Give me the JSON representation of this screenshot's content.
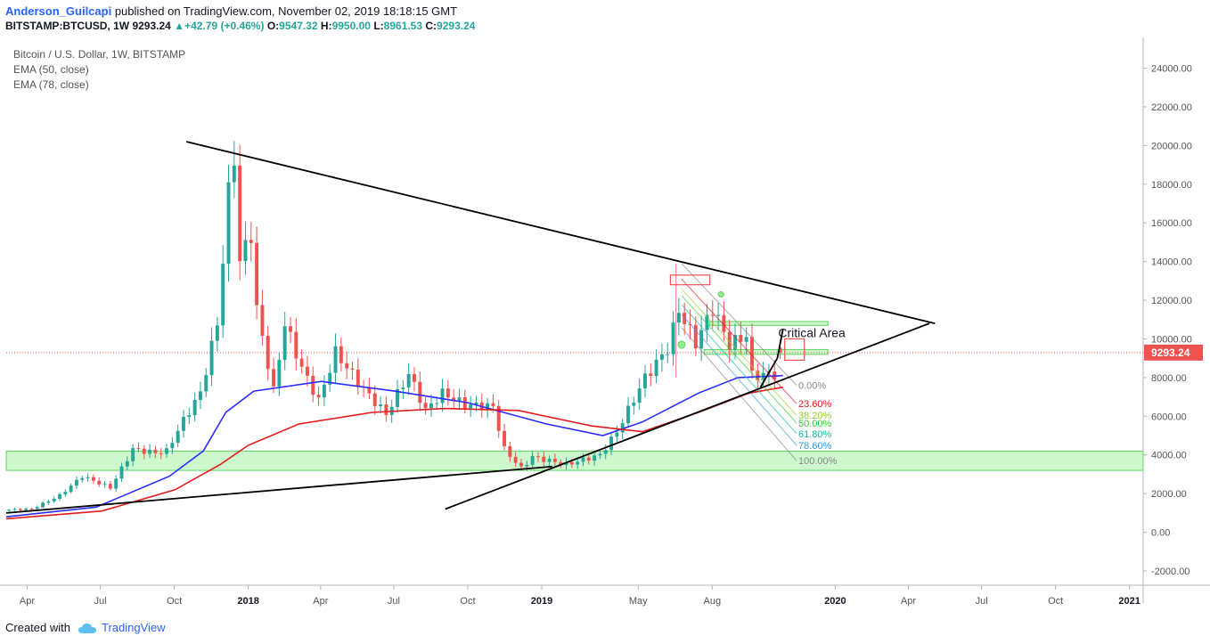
{
  "header": {
    "author": "Anderson_Guilcapi",
    "published": "published on TradingView.com, November 02, 2019 18:18:15 GMT",
    "symbol": "BITSTAMP:BTCUSD, 1W",
    "last": "9293.24",
    "change": "+42.79 (+0.46%)",
    "o_label": "O:",
    "o_value": "9547.32",
    "h_label": "H:",
    "h_value": "9950.00",
    "l_label": "L:",
    "l_value": "8961.53",
    "c_label": "C:",
    "c_value": "9293.24",
    "up_arrow_icon": "triangle-up-icon"
  },
  "legend": {
    "title": "Bitcoin / U.S. Dollar, 1W, BITSTAMP",
    "ema50": "EMA (50, close)",
    "ema78": "EMA (78, close)"
  },
  "footer": {
    "created_with": "Created with",
    "brand": "TradingView",
    "logo_icon": "tradingview-cloud-icon"
  },
  "colors": {
    "up": "#26a69a",
    "down": "#ef5350",
    "ema50": "#2b2bff",
    "ema78": "#e41a1c",
    "trendline": "#000000",
    "zone": "#90ee90",
    "price_label": "#ef5350"
  },
  "chart_data": {
    "type": "candlestick",
    "symbol": "BITSTAMP:BTCUSD",
    "interval": "1W",
    "y_axis_position": "right",
    "ylim": [
      -2600,
      25500
    ],
    "y_ticks": [
      "-2000.00",
      "0.00",
      "2000.00",
      "4000.00",
      "6000.00",
      "8000.00",
      "10000.00",
      "12000.00",
      "14000.00",
      "16000.00",
      "18000.00",
      "20000.00",
      "22000.00",
      "24000.00"
    ],
    "x_range": [
      "2017-03-06",
      "2021-01-18"
    ],
    "x_ticks": [
      {
        "label": "Apr",
        "date": "2017-04-01",
        "bold": false
      },
      {
        "label": "Jul",
        "date": "2017-07-01",
        "bold": false
      },
      {
        "label": "Oct",
        "date": "2017-10-01",
        "bold": false
      },
      {
        "label": "2018",
        "date": "2018-01-01",
        "bold": true
      },
      {
        "label": "Apr",
        "date": "2018-04-01",
        "bold": false
      },
      {
        "label": "Jul",
        "date": "2018-07-01",
        "bold": false
      },
      {
        "label": "Oct",
        "date": "2018-10-01",
        "bold": false
      },
      {
        "label": "2019",
        "date": "2019-01-01",
        "bold": true
      },
      {
        "label": "May",
        "date": "2019-05-01",
        "bold": false
      },
      {
        "label": "Aug",
        "date": "2019-08-01",
        "bold": false
      },
      {
        "label": "2020",
        "date": "2020-01-01",
        "bold": true
      },
      {
        "label": "Apr",
        "date": "2020-04-01",
        "bold": false
      },
      {
        "label": "Jul",
        "date": "2020-07-01",
        "bold": false
      },
      {
        "label": "Oct",
        "date": "2020-10-01",
        "bold": false
      },
      {
        "label": "2021",
        "date": "2021-01-01",
        "bold": true
      }
    ],
    "price_anchors": [
      [
        "2017-03-06",
        1150
      ],
      [
        "2017-04-10",
        1200
      ],
      [
        "2017-05-15",
        1900
      ],
      [
        "2017-06-12",
        2900
      ],
      [
        "2017-07-17",
        2300
      ],
      [
        "2017-08-14",
        4300
      ],
      [
        "2017-09-11",
        4100
      ],
      [
        "2017-09-25",
        4200
      ],
      [
        "2017-10-16",
        5800
      ],
      [
        "2017-11-06",
        7200
      ],
      [
        "2017-11-27",
        10800
      ],
      [
        "2017-12-11",
        17500
      ],
      [
        "2017-12-18",
        19500
      ],
      [
        "2017-12-25",
        14000
      ],
      [
        "2018-01-08",
        15500
      ],
      [
        "2018-01-15",
        11500
      ],
      [
        "2018-02-05",
        7300
      ],
      [
        "2018-02-19",
        10800
      ],
      [
        "2018-03-12",
        8500
      ],
      [
        "2018-04-02",
        6800
      ],
      [
        "2018-04-23",
        9300
      ],
      [
        "2018-05-28",
        7400
      ],
      [
        "2018-06-25",
        6100
      ],
      [
        "2018-07-23",
        8200
      ],
      [
        "2018-08-13",
        6300
      ],
      [
        "2018-09-03",
        7200
      ],
      [
        "2018-10-01",
        6600
      ],
      [
        "2018-11-05",
        6500
      ],
      [
        "2018-11-19",
        4300
      ],
      [
        "2018-12-10",
        3300
      ],
      [
        "2018-12-24",
        3900
      ],
      [
        "2019-02-04",
        3500
      ],
      [
        "2019-03-18",
        4000
      ],
      [
        "2019-04-08",
        5200
      ],
      [
        "2019-05-13",
        8000
      ],
      [
        "2019-06-10",
        9500
      ],
      [
        "2019-06-24",
        11500
      ],
      [
        "2019-07-15",
        9800
      ],
      [
        "2019-08-05",
        11600
      ],
      [
        "2019-08-26",
        9700
      ],
      [
        "2019-09-16",
        10200
      ],
      [
        "2019-09-23",
        8100
      ],
      [
        "2019-10-21",
        8200
      ],
      [
        "2019-10-28",
        9250
      ]
    ],
    "last_candle": {
      "open": 9547.32,
      "high": 9950.0,
      "low": 8961.53,
      "close": 9293.24
    },
    "last_price": 9293.24,
    "last_price_label": "9293.24",
    "ema": [
      {
        "name": "EMA (50, close)",
        "color": "#2b2bff",
        "points": [
          [
            "2017-03-06",
            800
          ],
          [
            "2017-06-26",
            1300
          ],
          [
            "2017-09-25",
            2900
          ],
          [
            "2017-11-06",
            4200
          ],
          [
            "2017-12-04",
            6200
          ],
          [
            "2018-01-08",
            7300
          ],
          [
            "2018-04-02",
            7800
          ],
          [
            "2018-07-02",
            7300
          ],
          [
            "2018-10-01",
            6700
          ],
          [
            "2019-01-07",
            5600
          ],
          [
            "2019-03-18",
            5000
          ],
          [
            "2019-05-06",
            5700
          ],
          [
            "2019-07-15",
            7200
          ],
          [
            "2019-09-02",
            8000
          ],
          [
            "2019-10-28",
            8100
          ]
        ]
      },
      {
        "name": "EMA (78, close)",
        "color": "#e41a1c",
        "points": [
          [
            "2017-03-06",
            700
          ],
          [
            "2017-07-03",
            1100
          ],
          [
            "2017-10-02",
            2200
          ],
          [
            "2017-11-27",
            3500
          ],
          [
            "2018-01-01",
            4500
          ],
          [
            "2018-03-05",
            5600
          ],
          [
            "2018-06-04",
            6200
          ],
          [
            "2018-09-03",
            6400
          ],
          [
            "2018-12-03",
            6300
          ],
          [
            "2019-03-04",
            5500
          ],
          [
            "2019-05-06",
            5200
          ],
          [
            "2019-07-15",
            6200
          ],
          [
            "2019-09-16",
            7200
          ],
          [
            "2019-10-28",
            7500
          ]
        ]
      }
    ],
    "horizontal_line": {
      "price": 9293.24,
      "style": "dotted"
    },
    "zones": [
      {
        "x1": "2017-03-06",
        "x2": "2021-01-18",
        "y1": 3200,
        "y2": 4200
      },
      {
        "x1": "2019-07-29",
        "x2": "2019-12-23",
        "y1": 10700,
        "y2": 10900
      },
      {
        "x1": "2019-07-22",
        "x2": "2019-12-23",
        "y1": 9200,
        "y2": 9450
      }
    ],
    "trendlines": [
      {
        "from": [
          "2017-10-16",
          20200
        ],
        "to": [
          "2020-05-04",
          10800
        ]
      },
      {
        "from": [
          "2017-03-06",
          1000
        ],
        "to": [
          "2019-01-14",
          3400
        ]
      },
      {
        "from": [
          "2018-09-03",
          1200
        ],
        "to": [
          "2020-04-27",
          10800
        ]
      },
      {
        "from": [
          "2019-09-30",
          7500
        ],
        "to": [
          "2019-10-21",
          9000
        ]
      },
      {
        "from": [
          "2019-10-21",
          9000
        ],
        "to": [
          "2019-10-28",
          10500
        ]
      }
    ],
    "annotations": [
      {
        "text": "Critical Area",
        "at": [
          "2019-11-11",
          10100
        ]
      }
    ],
    "fib": {
      "top": [
        "2019-06-17",
        13900
      ],
      "base_start": [
        "2019-06-24",
        13200
      ],
      "end_x": "2019-11-25",
      "levels": [
        {
          "label": "0.00%",
          "price": 7600,
          "color": "#888888"
        },
        {
          "label": "23.60%",
          "price": 6650,
          "color": "#e41a1c"
        },
        {
          "label": "38.20%",
          "price": 6050,
          "color": "#9acd32"
        },
        {
          "label": "50.00%",
          "price": 5650,
          "color": "#32cd32"
        },
        {
          "label": "61.80%",
          "price": 5100,
          "color": "#1abc9c"
        },
        {
          "label": "78.60%",
          "price": 4500,
          "color": "#3498db"
        },
        {
          "label": "100.00%",
          "price": 3700,
          "color": "#888888"
        }
      ]
    }
  }
}
